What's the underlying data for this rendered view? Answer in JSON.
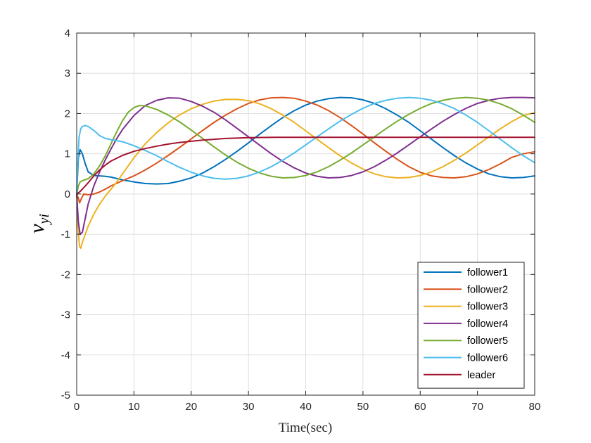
{
  "chart_data": {
    "type": "line",
    "title": "",
    "xlabel": "Time(sec)",
    "ylabel": {
      "main": "v",
      "sub": "yi"
    },
    "xlim": [
      0,
      80
    ],
    "ylim": [
      -5,
      4
    ],
    "xticks": [
      0,
      10,
      20,
      30,
      40,
      50,
      60,
      70,
      80
    ],
    "yticks": [
      -5,
      -4,
      -3,
      -2,
      -1,
      0,
      1,
      2,
      3,
      4
    ],
    "grid": true,
    "legend_position": "bottom-right",
    "series": [
      {
        "name": "follower1",
        "color": "#0072BD",
        "points": [
          [
            0,
            0
          ],
          [
            0.3,
            0.9
          ],
          [
            0.6,
            1.1
          ],
          [
            1,
            1.0
          ],
          [
            1.5,
            0.75
          ],
          [
            2,
            0.55
          ],
          [
            3,
            0.46
          ],
          [
            4,
            0.45
          ],
          [
            5,
            0.44
          ],
          [
            6,
            0.42
          ],
          [
            8,
            0.35
          ],
          [
            10,
            0.3
          ],
          [
            12,
            0.26
          ],
          [
            14,
            0.25
          ],
          [
            16,
            0.26
          ],
          [
            18,
            0.32
          ],
          [
            20,
            0.4
          ],
          [
            22,
            0.52
          ],
          [
            24,
            0.68
          ],
          [
            26,
            0.86
          ],
          [
            28,
            1.06
          ],
          [
            30,
            1.27
          ],
          [
            32,
            1.49
          ],
          [
            34,
            1.7
          ],
          [
            36,
            1.9
          ],
          [
            38,
            2.07
          ],
          [
            40,
            2.21
          ],
          [
            42,
            2.31
          ],
          [
            44,
            2.37
          ],
          [
            46,
            2.4
          ],
          [
            48,
            2.39
          ],
          [
            50,
            2.34
          ],
          [
            52,
            2.25
          ],
          [
            54,
            2.12
          ],
          [
            56,
            1.96
          ],
          [
            58,
            1.78
          ],
          [
            60,
            1.57
          ],
          [
            62,
            1.36
          ],
          [
            64,
            1.15
          ],
          [
            66,
            0.95
          ],
          [
            68,
            0.77
          ],
          [
            70,
            0.62
          ],
          [
            72,
            0.5
          ],
          [
            74,
            0.43
          ],
          [
            76,
            0.4
          ],
          [
            78,
            0.41
          ],
          [
            80,
            0.45
          ]
        ]
      },
      {
        "name": "follower2",
        "color": "#D95319",
        "points": [
          [
            0,
            0
          ],
          [
            0.3,
            -0.1
          ],
          [
            0.5,
            -0.22
          ],
          [
            0.8,
            -0.12
          ],
          [
            1.2,
            0.0
          ],
          [
            2,
            -0.02
          ],
          [
            3,
            0.0
          ],
          [
            4,
            0.05
          ],
          [
            5,
            0.12
          ],
          [
            6,
            0.2
          ],
          [
            8,
            0.33
          ],
          [
            10,
            0.45
          ],
          [
            12,
            0.6
          ],
          [
            14,
            0.77
          ],
          [
            16,
            0.96
          ],
          [
            18,
            1.16
          ],
          [
            20,
            1.37
          ],
          [
            22,
            1.58
          ],
          [
            24,
            1.78
          ],
          [
            26,
            1.96
          ],
          [
            28,
            2.12
          ],
          [
            30,
            2.25
          ],
          [
            32,
            2.34
          ],
          [
            34,
            2.39
          ],
          [
            36,
            2.4
          ],
          [
            38,
            2.38
          ],
          [
            40,
            2.31
          ],
          [
            42,
            2.21
          ],
          [
            44,
            2.07
          ],
          [
            46,
            1.9
          ],
          [
            48,
            1.7
          ],
          [
            50,
            1.49
          ],
          [
            52,
            1.27
          ],
          [
            54,
            1.06
          ],
          [
            56,
            0.86
          ],
          [
            58,
            0.68
          ],
          [
            60,
            0.54
          ],
          [
            62,
            0.45
          ],
          [
            64,
            0.41
          ],
          [
            66,
            0.4
          ],
          [
            68,
            0.43
          ],
          [
            70,
            0.5
          ],
          [
            72,
            0.61
          ],
          [
            74,
            0.75
          ],
          [
            76,
            0.91
          ],
          [
            78,
            1.0
          ],
          [
            80,
            1.05
          ]
        ]
      },
      {
        "name": "follower3",
        "color": "#EDB120",
        "points": [
          [
            0,
            0
          ],
          [
            0.2,
            -0.8
          ],
          [
            0.5,
            -1.3
          ],
          [
            0.7,
            -1.35
          ],
          [
            1,
            -1.2
          ],
          [
            2,
            -0.8
          ],
          [
            3,
            -0.5
          ],
          [
            4,
            -0.25
          ],
          [
            5,
            -0.05
          ],
          [
            6,
            0.12
          ],
          [
            7,
            0.3
          ],
          [
            8,
            0.5
          ],
          [
            10,
            0.9
          ],
          [
            12,
            1.25
          ],
          [
            14,
            1.53
          ],
          [
            16,
            1.77
          ],
          [
            18,
            1.97
          ],
          [
            20,
            2.12
          ],
          [
            22,
            2.23
          ],
          [
            24,
            2.31
          ],
          [
            26,
            2.35
          ],
          [
            28,
            2.35
          ],
          [
            30,
            2.32
          ],
          [
            32,
            2.24
          ],
          [
            34,
            2.12
          ],
          [
            36,
            1.96
          ],
          [
            38,
            1.78
          ],
          [
            40,
            1.57
          ],
          [
            42,
            1.36
          ],
          [
            44,
            1.15
          ],
          [
            46,
            0.95
          ],
          [
            48,
            0.77
          ],
          [
            50,
            0.62
          ],
          [
            52,
            0.5
          ],
          [
            54,
            0.43
          ],
          [
            56,
            0.4
          ],
          [
            58,
            0.41
          ],
          [
            60,
            0.46
          ],
          [
            62,
            0.55
          ],
          [
            64,
            0.68
          ],
          [
            66,
            0.84
          ],
          [
            68,
            1.02
          ],
          [
            70,
            1.22
          ],
          [
            72,
            1.42
          ],
          [
            74,
            1.62
          ],
          [
            76,
            1.8
          ],
          [
            78,
            1.95
          ],
          [
            80,
            2.02
          ]
        ]
      },
      {
        "name": "follower4",
        "color": "#7E2F8E",
        "points": [
          [
            0,
            0
          ],
          [
            0.3,
            -0.7
          ],
          [
            0.6,
            -1.0
          ],
          [
            1,
            -0.95
          ],
          [
            1.5,
            -0.6
          ],
          [
            2,
            -0.25
          ],
          [
            3,
            0.2
          ],
          [
            4,
            0.55
          ],
          [
            5,
            0.85
          ],
          [
            6,
            1.12
          ],
          [
            7,
            1.38
          ],
          [
            8,
            1.6
          ],
          [
            10,
            1.95
          ],
          [
            12,
            2.2
          ],
          [
            14,
            2.33
          ],
          [
            16,
            2.39
          ],
          [
            18,
            2.38
          ],
          [
            20,
            2.3
          ],
          [
            22,
            2.18
          ],
          [
            24,
            2.03
          ],
          [
            26,
            1.84
          ],
          [
            28,
            1.63
          ],
          [
            30,
            1.42
          ],
          [
            32,
            1.21
          ],
          [
            34,
            1.0
          ],
          [
            36,
            0.81
          ],
          [
            38,
            0.65
          ],
          [
            40,
            0.52
          ],
          [
            42,
            0.44
          ],
          [
            44,
            0.4
          ],
          [
            46,
            0.41
          ],
          [
            48,
            0.46
          ],
          [
            50,
            0.55
          ],
          [
            52,
            0.68
          ],
          [
            54,
            0.84
          ],
          [
            56,
            1.02
          ],
          [
            58,
            1.22
          ],
          [
            60,
            1.42
          ],
          [
            62,
            1.62
          ],
          [
            64,
            1.81
          ],
          [
            66,
            1.98
          ],
          [
            68,
            2.13
          ],
          [
            70,
            2.25
          ],
          [
            72,
            2.33
          ],
          [
            74,
            2.38
          ],
          [
            76,
            2.4
          ],
          [
            78,
            2.4
          ],
          [
            80,
            2.39
          ]
        ]
      },
      {
        "name": "follower5",
        "color": "#77AC30",
        "points": [
          [
            0,
            0
          ],
          [
            0.3,
            0.2
          ],
          [
            0.6,
            0.3
          ],
          [
            1,
            0.33
          ],
          [
            2,
            0.38
          ],
          [
            3,
            0.5
          ],
          [
            4,
            0.7
          ],
          [
            5,
            0.95
          ],
          [
            6,
            1.25
          ],
          [
            7,
            1.55
          ],
          [
            8,
            1.82
          ],
          [
            9,
            2.03
          ],
          [
            10,
            2.15
          ],
          [
            11,
            2.2
          ],
          [
            12,
            2.19
          ],
          [
            14,
            2.1
          ],
          [
            16,
            1.96
          ],
          [
            18,
            1.79
          ],
          [
            20,
            1.59
          ],
          [
            22,
            1.38
          ],
          [
            24,
            1.17
          ],
          [
            26,
            0.97
          ],
          [
            28,
            0.79
          ],
          [
            30,
            0.64
          ],
          [
            32,
            0.52
          ],
          [
            34,
            0.44
          ],
          [
            36,
            0.4
          ],
          [
            38,
            0.41
          ],
          [
            40,
            0.46
          ],
          [
            42,
            0.55
          ],
          [
            44,
            0.68
          ],
          [
            46,
            0.84
          ],
          [
            48,
            1.02
          ],
          [
            50,
            1.22
          ],
          [
            52,
            1.42
          ],
          [
            54,
            1.62
          ],
          [
            56,
            1.81
          ],
          [
            58,
            1.98
          ],
          [
            60,
            2.13
          ],
          [
            62,
            2.25
          ],
          [
            64,
            2.33
          ],
          [
            66,
            2.38
          ],
          [
            68,
            2.4
          ],
          [
            70,
            2.38
          ],
          [
            72,
            2.33
          ],
          [
            74,
            2.24
          ],
          [
            76,
            2.12
          ],
          [
            78,
            1.96
          ],
          [
            80,
            1.78
          ]
        ]
      },
      {
        "name": "follower6",
        "color": "#4DBEEE",
        "points": [
          [
            0,
            0
          ],
          [
            0.2,
            0.8
          ],
          [
            0.4,
            1.4
          ],
          [
            0.7,
            1.62
          ],
          [
            1,
            1.68
          ],
          [
            1.5,
            1.7
          ],
          [
            2,
            1.68
          ],
          [
            3,
            1.58
          ],
          [
            4,
            1.45
          ],
          [
            5,
            1.38
          ],
          [
            6,
            1.35
          ],
          [
            8,
            1.3
          ],
          [
            10,
            1.2
          ],
          [
            12,
            1.08
          ],
          [
            14,
            0.95
          ],
          [
            16,
            0.8
          ],
          [
            18,
            0.66
          ],
          [
            20,
            0.54
          ],
          [
            22,
            0.45
          ],
          [
            24,
            0.39
          ],
          [
            26,
            0.37
          ],
          [
            28,
            0.39
          ],
          [
            30,
            0.45
          ],
          [
            32,
            0.55
          ],
          [
            34,
            0.68
          ],
          [
            36,
            0.84
          ],
          [
            38,
            1.02
          ],
          [
            40,
            1.22
          ],
          [
            42,
            1.42
          ],
          [
            44,
            1.62
          ],
          [
            46,
            1.81
          ],
          [
            48,
            1.98
          ],
          [
            50,
            2.13
          ],
          [
            52,
            2.25
          ],
          [
            54,
            2.33
          ],
          [
            56,
            2.38
          ],
          [
            58,
            2.4
          ],
          [
            60,
            2.38
          ],
          [
            62,
            2.33
          ],
          [
            64,
            2.24
          ],
          [
            66,
            2.12
          ],
          [
            68,
            1.96
          ],
          [
            70,
            1.78
          ],
          [
            72,
            1.57
          ],
          [
            74,
            1.36
          ],
          [
            76,
            1.15
          ],
          [
            78,
            0.95
          ],
          [
            80,
            0.78
          ]
        ]
      },
      {
        "name": "leader",
        "color": "#A2142F",
        "points": [
          [
            0,
            0
          ],
          [
            0.5,
            0.05
          ],
          [
            1,
            0.12
          ],
          [
            2,
            0.28
          ],
          [
            3,
            0.45
          ],
          [
            4,
            0.6
          ],
          [
            5,
            0.72
          ],
          [
            6,
            0.82
          ],
          [
            8,
            0.96
          ],
          [
            10,
            1.06
          ],
          [
            12,
            1.13
          ],
          [
            14,
            1.19
          ],
          [
            16,
            1.24
          ],
          [
            18,
            1.28
          ],
          [
            20,
            1.31
          ],
          [
            22,
            1.34
          ],
          [
            24,
            1.36
          ],
          [
            26,
            1.38
          ],
          [
            28,
            1.39
          ],
          [
            30,
            1.4
          ],
          [
            35,
            1.41
          ],
          [
            40,
            1.41
          ],
          [
            50,
            1.41
          ],
          [
            60,
            1.41
          ],
          [
            70,
            1.41
          ],
          [
            80,
            1.41
          ]
        ]
      }
    ]
  }
}
